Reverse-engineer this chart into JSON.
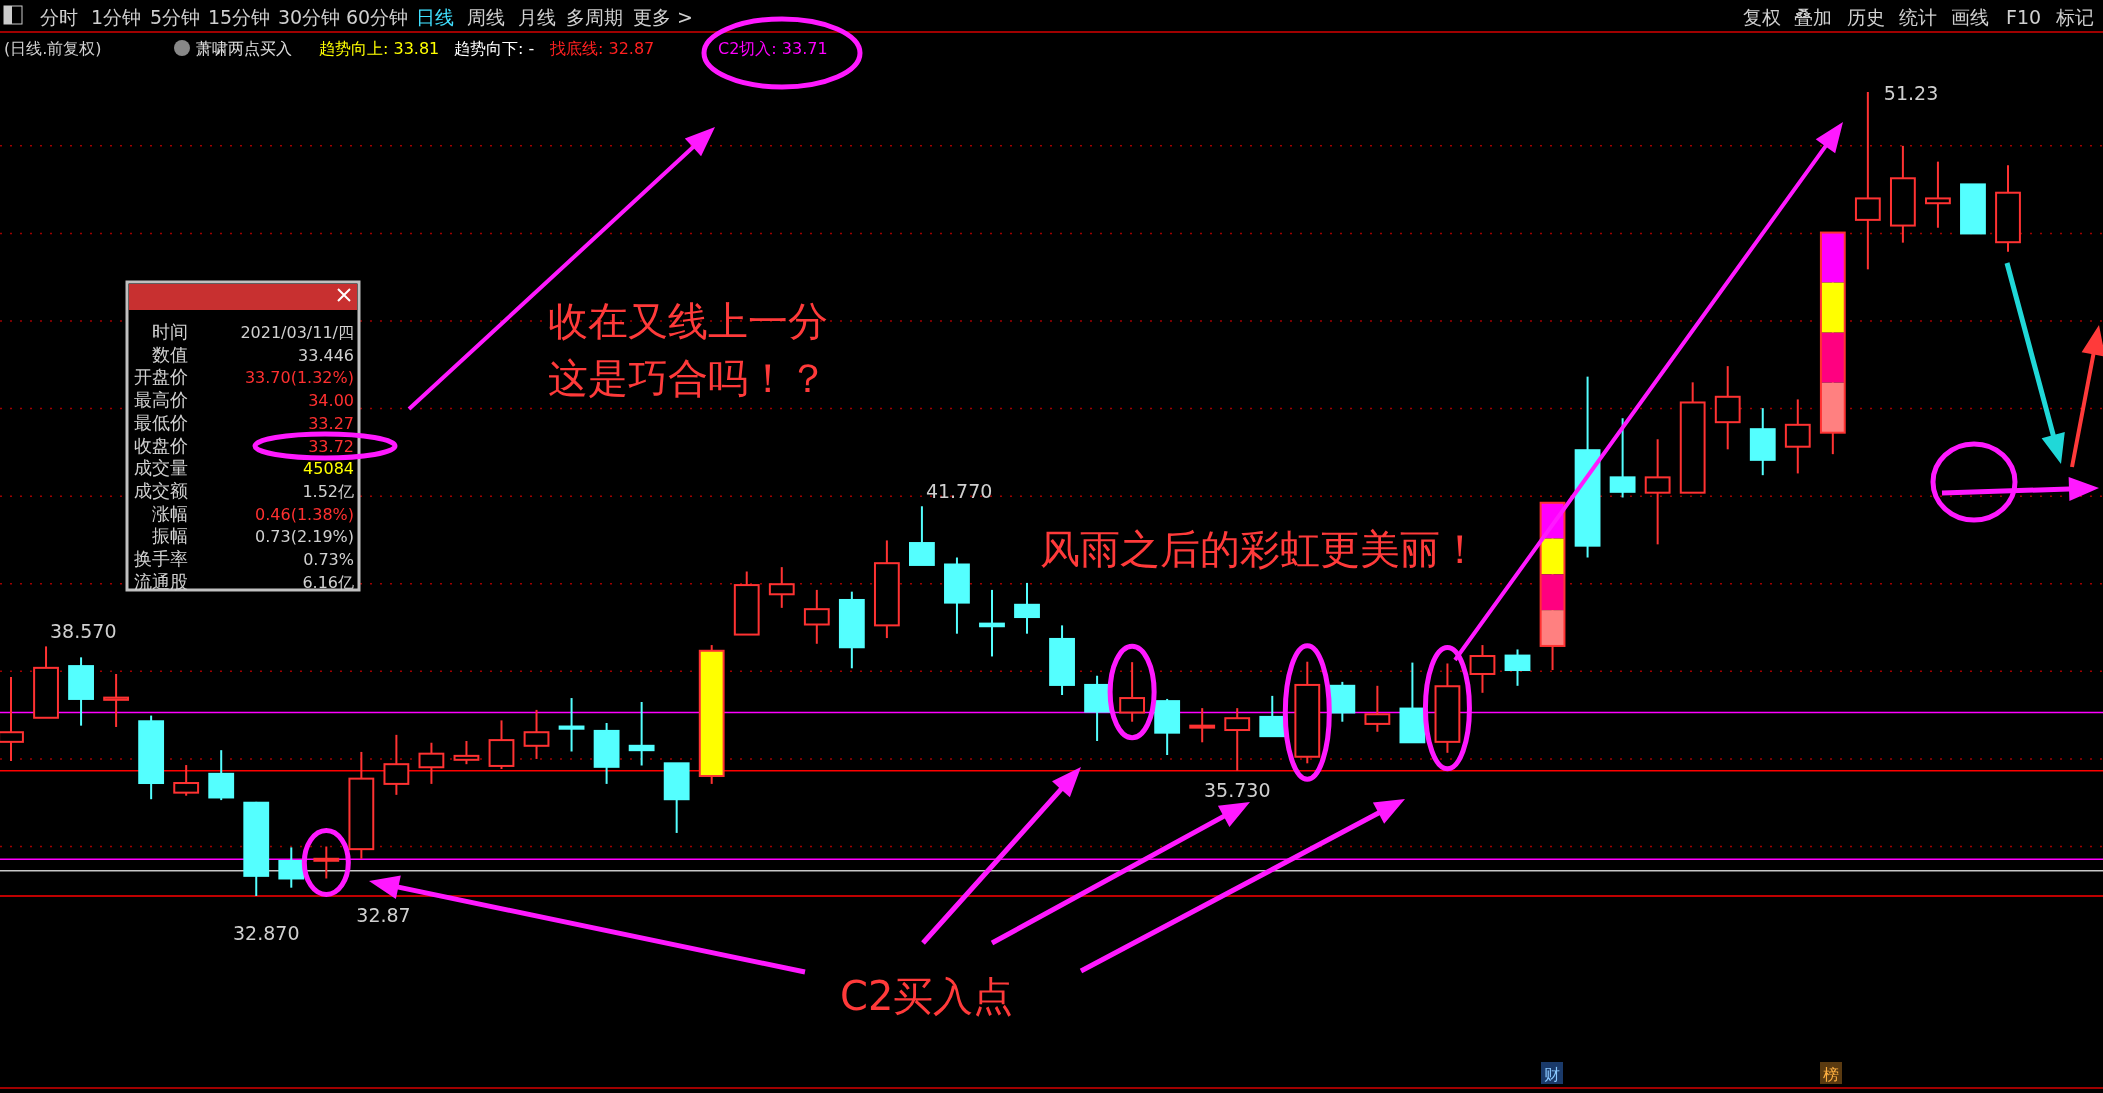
{
  "chart_data": {
    "type": "candlestick",
    "categories": [
      null,
      null,
      null,
      null,
      null,
      null,
      null,
      null,
      null,
      null,
      null,
      null,
      null,
      null,
      null,
      null,
      null,
      null,
      null,
      null,
      null,
      null,
      null,
      null,
      null,
      null,
      null,
      null,
      null,
      null,
      null,
      null,
      null,
      null,
      null,
      null,
      null,
      null,
      null,
      null,
      null,
      null,
      null,
      null,
      null,
      null,
      null,
      null,
      null,
      null,
      null,
      null,
      null,
      null,
      null,
      null,
      null,
      null
    ],
    "ohlc": [
      [
        36.39,
        37.87,
        35.95,
        36.61
      ],
      [
        36.94,
        38.57,
        36.94,
        38.08
      ],
      [
        38.12,
        38.32,
        36.76,
        37.37
      ],
      [
        37.35,
        37.94,
        36.73,
        37.4
      ],
      [
        36.86,
        36.99,
        35.08,
        35.45
      ],
      [
        35.23,
        35.86,
        35.16,
        35.45
      ],
      [
        35.66,
        36.2,
        35.06,
        35.12
      ],
      [
        35.0,
        35.02,
        32.87,
        33.33
      ],
      [
        33.67,
        33.98,
        33.06,
        33.27
      ],
      [
        33.7,
        34.0,
        33.27,
        33.72
      ],
      [
        33.94,
        36.16,
        33.72,
        35.55
      ],
      [
        35.43,
        36.55,
        35.18,
        35.88
      ],
      [
        35.81,
        36.37,
        35.43,
        36.12
      ],
      [
        35.98,
        36.41,
        35.88,
        36.07
      ],
      [
        35.84,
        36.88,
        35.77,
        36.43
      ],
      [
        36.3,
        37.12,
        36.0,
        36.61
      ],
      [
        36.74,
        37.39,
        36.17,
        36.69
      ],
      [
        36.64,
        36.82,
        35.43,
        35.82
      ],
      [
        36.3,
        37.3,
        35.85,
        36.2
      ],
      [
        35.9,
        35.9,
        34.31,
        35.08
      ],
      [
        35.61,
        38.6,
        35.43,
        38.47
      ],
      [
        38.84,
        40.28,
        38.84,
        39.97
      ],
      [
        39.76,
        40.38,
        39.45,
        39.99
      ],
      [
        39.07,
        39.86,
        38.63,
        39.42
      ],
      [
        39.63,
        39.82,
        38.07,
        38.55
      ],
      [
        39.05,
        40.99,
        38.76,
        40.47
      ],
      [
        40.93,
        41.77,
        40.43,
        40.43
      ],
      [
        40.44,
        40.6,
        38.86,
        39.57
      ],
      [
        39.09,
        39.86,
        38.34,
        39.03
      ],
      [
        39.52,
        40.02,
        38.86,
        39.24
      ],
      [
        38.74,
        39.05,
        37.46,
        37.69
      ],
      [
        37.69,
        37.9,
        36.41,
        37.08
      ],
      [
        37.06,
        38.21,
        36.85,
        37.39
      ],
      [
        37.32,
        37.37,
        36.09,
        36.6
      ],
      [
        36.72,
        37.16,
        36.38,
        36.76
      ],
      [
        36.66,
        37.16,
        35.73,
        36.93
      ],
      [
        36.96,
        37.44,
        36.52,
        36.52
      ],
      [
        36.05,
        38.22,
        35.9,
        37.69
      ],
      [
        37.67,
        37.76,
        36.85,
        37.06
      ],
      [
        36.8,
        37.67,
        36.62,
        37.02
      ],
      [
        37.15,
        38.2,
        36.38,
        36.38
      ],
      [
        36.39,
        38.18,
        36.14,
        37.66
      ],
      [
        37.94,
        38.6,
        37.51,
        38.35
      ],
      [
        38.36,
        38.5,
        37.67,
        38.03
      ],
      [
        38.58,
        41.85,
        38.03,
        41.85
      ],
      [
        43.05,
        44.73,
        40.6,
        40.87
      ],
      [
        42.43,
        43.78,
        41.97,
        42.1
      ],
      [
        42.08,
        43.3,
        40.9,
        42.43
      ],
      [
        42.08,
        44.6,
        42.08,
        44.14
      ],
      [
        43.69,
        44.97,
        43.07,
        44.27
      ],
      [
        43.53,
        44.01,
        42.48,
        42.83
      ],
      [
        43.13,
        44.21,
        42.52,
        43.63
      ],
      [
        43.45,
        48.02,
        42.96,
        48.02
      ],
      [
        48.31,
        51.23,
        47.18,
        48.8
      ],
      [
        48.18,
        50.0,
        47.79,
        49.26
      ],
      [
        48.69,
        49.64,
        48.13,
        48.8
      ],
      [
        49.12,
        49.12,
        48.0,
        48.0
      ],
      [
        47.8,
        49.56,
        47.58,
        48.93
      ]
    ],
    "colors": [
      "#ff3232",
      "#ff3232",
      "#54ffff",
      "#ff3232",
      "#54ffff",
      "#ff3232",
      "#54ffff",
      "#54ffff",
      "#54ffff",
      "#ff3232",
      "#ff3232",
      "#ff3232",
      "#ff3232",
      "#ff3232",
      "#ff3232",
      "#ff3232",
      "#54ffff",
      "#54ffff",
      "#54ffff",
      "#54ffff",
      "#ffff00",
      "#ff3232",
      "#ff3232",
      "#ff3232",
      "#54ffff",
      "#ff3232",
      "#54ffff",
      "#54ffff",
      "#54ffff",
      "#54ffff",
      "#54ffff",
      "#54ffff",
      "#ff3232",
      "#54ffff",
      "#ff3232",
      "#ff3232",
      "#54ffff",
      "#ff3232",
      "#54ffff",
      "#ff3232",
      "#54ffff",
      "#ff3232",
      "#ff3232",
      "#54ffff",
      [
        "#ff00ff",
        "#ffff00",
        "#ff0080",
        "#ff8080"
      ],
      "#54ffff",
      "#54ffff",
      "#ff3232",
      "#ff3232",
      "#ff3232",
      "#54ffff",
      "#ff3232",
      [
        "#ff00ff",
        "#ffff00",
        "#ff0080",
        "#ff8080"
      ],
      "#ff3232",
      "#ff3232",
      "#ff3232",
      "#54ffff",
      "#ff3232"
    ],
    "yticks": [
      {
        "value": 34,
        "label": null
      },
      {
        "value": 36,
        "label": null
      },
      {
        "value": 38,
        "label": null
      },
      {
        "value": 40,
        "label": null
      },
      {
        "value": 42,
        "label": null
      },
      {
        "value": 44,
        "label": null
      },
      {
        "value": 46,
        "label": null
      },
      {
        "value": 48,
        "label": null
      },
      {
        "value": 50,
        "label": null
      }
    ],
    "grid": "y",
    "ref_lines": [
      {
        "axis": "y",
        "value": 33.446,
        "color": "#c8c8c8",
        "line_style": "solid"
      },
      {
        "axis": "y",
        "value": 33.71,
        "color": "#ff00ff",
        "line_style": "solid"
      },
      {
        "axis": "y",
        "value": 32.87,
        "color": "#ff0000",
        "line_style": "solid"
      },
      {
        "axis": "y",
        "value": 37.06,
        "color": "#ff00ff",
        "line_style": "solid"
      },
      {
        "axis": "y",
        "value": 35.73,
        "color": "#ff0000",
        "line_style": "solid"
      }
    ],
    "annotations": [
      "分时",
      "1分钟",
      "5分钟",
      "15分钟",
      "30分钟",
      "60分钟",
      "日线",
      "周线",
      "月线",
      "多周期",
      "更多 >",
      "复权",
      "叠加",
      "历史",
      "统计",
      "画线",
      "F10",
      "标记",
      "(日线.前复权)",
      "萧啸两点买入",
      "趋势向上: 33.81",
      "趋势向下: -",
      "找底线: 32.87",
      "C2切入: 33.71",
      "时间",
      "数值",
      "开盘价",
      "最高价",
      "最低价",
      "收盘价",
      "成交量",
      "成交额",
      "涨幅",
      "振幅",
      "换手率",
      "流通股",
      "2021/03/11/四",
      "33.446",
      "33.70(1.32%)",
      "34.00",
      "33.27",
      "33.72",
      "45084",
      "1.52亿",
      "0.46(1.38%)",
      "0.73(2.19%)",
      "0.73%",
      "6.16亿",
      "收在又线上一分",
      "这是巧合吗！？",
      "风雨之后的彩虹更美丽！",
      "C2买入点",
      "财",
      "榜",
      "38.570",
      "41.770",
      "51.23",
      "32.870",
      "32.87",
      "35.730"
    ]
  }
}
